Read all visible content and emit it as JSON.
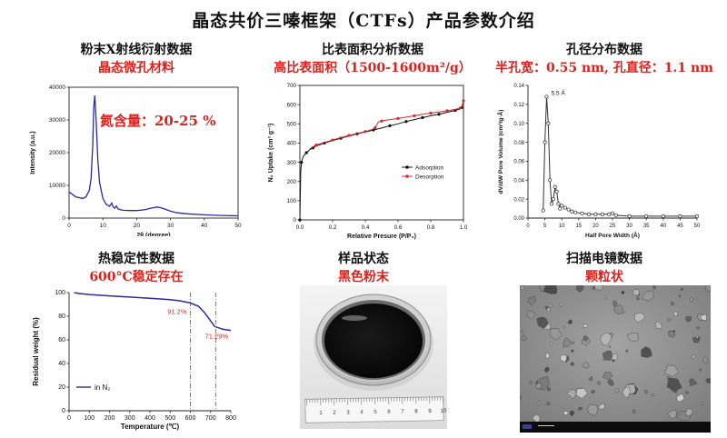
{
  "page": {
    "title": "晶态共价三嗪框架（CTFs）产品参数介绍"
  },
  "panels": {
    "xrd": {
      "title": "粉末X射线衍射数据",
      "subtitle": "晶态微孔材料",
      "annotation": "氮含量：20-25 %"
    },
    "bet": {
      "title": "比表面积分析数据",
      "subtitle": "高比表面积（1500-1600m²/g）"
    },
    "pore": {
      "title": "孔径分布数据",
      "subtitle": "半孔宽：0.55 nm, 孔直径：1.1 nm",
      "peak_label": "5.5 Å"
    },
    "tga": {
      "title": "热稳定性数据",
      "subtitle": "600°C稳定存在",
      "label1": "91.2%",
      "label2": "71.29%",
      "legend": "in N₂"
    },
    "sample": {
      "title": "样品状态",
      "subtitle": "黑色粉末",
      "ruler_numbers": [
        "1",
        "2",
        "3",
        "4",
        "5",
        "6",
        "7",
        "8",
        "9",
        "10"
      ]
    },
    "sem": {
      "title": "扫描电镜数据",
      "subtitle": "颗粒状"
    }
  },
  "colors": {
    "accent_red": "#e0201c",
    "xrd_line": "#2b2a9e",
    "tga_line": "#2b2a9e",
    "adsorption": "#111111",
    "desorption": "#d62a2a",
    "pore_line": "#333333"
  },
  "chart_data": [
    {
      "id": "xrd",
      "type": "line",
      "xlabel": "2θ (degree)",
      "ylabel": "Intensity (a.u.)",
      "xlim": [
        0,
        50
      ],
      "ylim": [
        0,
        40000
      ],
      "xticks": [
        0,
        10,
        20,
        30,
        40,
        50
      ],
      "yticks": [
        0,
        10000,
        20000,
        30000,
        40000
      ],
      "series": [
        {
          "x": [
            0,
            2,
            4,
            5,
            6,
            6.5,
            7,
            7.3,
            7.6,
            8,
            8.5,
            9,
            10,
            11,
            12,
            12.6,
            13,
            13.5,
            14,
            14.5,
            15,
            16,
            18,
            20,
            22,
            23,
            24,
            25,
            26,
            27,
            28,
            29,
            30,
            32,
            35,
            40,
            45,
            50
          ],
          "y": [
            8000,
            6500,
            6000,
            6500,
            8500,
            12000,
            22000,
            34000,
            37500,
            30000,
            18000,
            11000,
            6000,
            4200,
            3600,
            4600,
            3500,
            3000,
            3700,
            2800,
            2600,
            2400,
            2300,
            2300,
            2500,
            2700,
            3000,
            3200,
            3400,
            3200,
            2900,
            2500,
            2100,
            1600,
            1300,
            1000,
            800,
            700
          ]
        }
      ]
    },
    {
      "id": "bet",
      "type": "line",
      "xlabel": "Relative Presure (P/P₀)",
      "ylabel": "N₂ Uptake (cm³ g⁻¹)",
      "xlim": [
        0.0,
        1.0
      ],
      "ylim": [
        0,
        700
      ],
      "xticks": [
        0.0,
        0.2,
        0.4,
        0.6,
        0.8,
        1.0
      ],
      "yticks": [
        0,
        100,
        200,
        300,
        400,
        500,
        600,
        700
      ],
      "legend_position": "center-right",
      "series": [
        {
          "name": "Adsorption",
          "x": [
            0.0,
            0.005,
            0.01,
            0.02,
            0.04,
            0.06,
            0.08,
            0.1,
            0.15,
            0.2,
            0.25,
            0.3,
            0.35,
            0.4,
            0.45,
            0.5,
            0.55,
            0.6,
            0.65,
            0.7,
            0.75,
            0.8,
            0.85,
            0.9,
            0.95,
            0.98,
            0.99,
            1.0
          ],
          "y": [
            0,
            250,
            300,
            330,
            350,
            365,
            375,
            385,
            400,
            413,
            425,
            437,
            448,
            458,
            468,
            478,
            490,
            500,
            512,
            522,
            532,
            542,
            550,
            560,
            570,
            578,
            585,
            620
          ]
        },
        {
          "name": "Desorption",
          "x": [
            1.0,
            0.99,
            0.98,
            0.95,
            0.9,
            0.85,
            0.8,
            0.75,
            0.7,
            0.65,
            0.6,
            0.55,
            0.5,
            0.48,
            0.46,
            0.44,
            0.4,
            0.35,
            0.3,
            0.25,
            0.2,
            0.15,
            0.1,
            0.06
          ],
          "y": [
            620,
            590,
            582,
            575,
            568,
            562,
            556,
            550,
            542,
            535,
            528,
            522,
            515,
            510,
            480,
            470,
            460,
            450,
            440,
            428,
            416,
            403,
            390,
            370
          ]
        }
      ]
    },
    {
      "id": "pore",
      "type": "line",
      "xlabel": "Half Pore Width (Å)",
      "ylabel": "dV/dW Pore Volume (cm³/g·Å)",
      "xlim": [
        0,
        50
      ],
      "ylim": [
        0.0,
        0.14
      ],
      "xticks": [
        0,
        5,
        10,
        15,
        20,
        25,
        30,
        35,
        40,
        45,
        50
      ],
      "yticks": [
        0.0,
        0.02,
        0.04,
        0.06,
        0.08,
        0.1,
        0.12,
        0.14
      ],
      "series": [
        {
          "x": [
            4.5,
            5,
            5.5,
            6,
            6.5,
            7,
            7.5,
            8,
            8.5,
            9,
            9.5,
            10,
            11,
            12,
            13,
            14,
            16,
            18,
            20,
            22,
            24,
            25,
            26,
            30,
            35,
            40,
            45,
            50
          ],
          "y": [
            0.008,
            0.08,
            0.128,
            0.1,
            0.04,
            0.015,
            0.02,
            0.033,
            0.028,
            0.015,
            0.01,
            0.013,
            0.011,
            0.009,
            0.007,
            0.006,
            0.005,
            0.004,
            0.004,
            0.004,
            0.004,
            0.005,
            0.003,
            0.002,
            0.002,
            0.002,
            0.002,
            0.002
          ]
        }
      ]
    },
    {
      "id": "tga",
      "type": "line",
      "xlabel": "Temperature (℃)",
      "ylabel": "Residual weight (%)",
      "xlim": [
        0,
        800
      ],
      "ylim": [
        0,
        100
      ],
      "xticks": [
        0,
        100,
        200,
        300,
        400,
        500,
        600,
        700,
        800
      ],
      "yticks": [
        0,
        20,
        40,
        60,
        80,
        100
      ],
      "legend_position": "bottom-left",
      "series": [
        {
          "name": "in N₂",
          "x": [
            25,
            50,
            100,
            200,
            300,
            400,
            500,
            550,
            600,
            640,
            670,
            700,
            720,
            760,
            800
          ],
          "y": [
            100,
            99.2,
            98.4,
            97.2,
            96.2,
            95.2,
            94,
            93,
            91.2,
            88.5,
            83,
            76,
            71.3,
            69,
            68
          ]
        }
      ],
      "annotations": [
        {
          "x": 600,
          "y": 91.2,
          "text": "91.2%"
        },
        {
          "x": 725,
          "y": 71.29,
          "text": "71.29%"
        }
      ]
    }
  ]
}
